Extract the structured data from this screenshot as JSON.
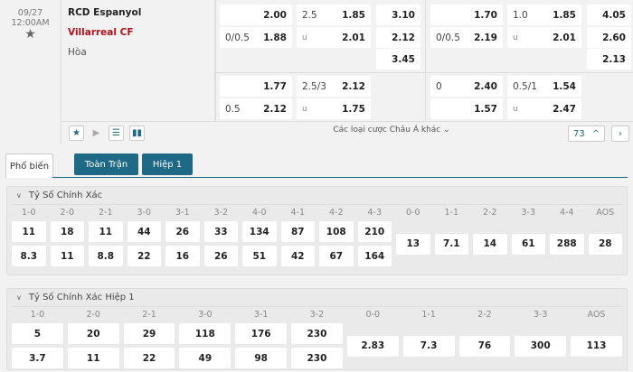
{
  "match": {
    "date": "09/27",
    "time": "12:00AM",
    "home": "RCD Espanyol",
    "away": "Villarreal CF",
    "draw": "Hòa"
  },
  "odds": {
    "ft": {
      "hdp": [
        {
          "line": "",
          "odd": "2.00"
        },
        {
          "line": "0/0.5",
          "odd": "1.88"
        }
      ],
      "ou": [
        {
          "line": "2.5",
          "odd": "1.85"
        },
        {
          "line": "u",
          "odd": "2.01"
        }
      ],
      "x12": [
        "3.10",
        "2.12",
        "3.45"
      ]
    },
    "ft_alt": {
      "hdp": [
        {
          "line": "",
          "odd": "1.77"
        },
        {
          "line": "0.5",
          "odd": "2.12"
        }
      ],
      "ou": [
        {
          "line": "2.5/3",
          "odd": "2.12"
        },
        {
          "line": "u",
          "odd": "1.75"
        }
      ]
    },
    "h1": {
      "hdp": [
        {
          "line": "",
          "odd": "1.70"
        },
        {
          "line": "0/0.5",
          "odd": "2.19"
        }
      ],
      "ou": [
        {
          "line": "1.0",
          "odd": "1.85"
        },
        {
          "line": "u",
          "odd": "2.01"
        }
      ],
      "x12": [
        "4.05",
        "2.60",
        "2.13"
      ]
    },
    "h1_alt": {
      "hdp": [
        {
          "line": "0",
          "odd": "2.40"
        },
        {
          "line": "",
          "odd": "1.57"
        }
      ],
      "ou": [
        {
          "line": "0.5/1",
          "odd": "1.54"
        },
        {
          "line": "u",
          "odd": "2.47"
        }
      ]
    }
  },
  "bottom": {
    "more_label": "Các loại cược Châu Á khác",
    "count": "73",
    "icons": [
      "star-icon",
      "play-icon",
      "list-icon",
      "stats-icon"
    ]
  },
  "tabs": [
    {
      "label": "Phổ biến",
      "active": true
    },
    {
      "label": "Toàn Trận"
    },
    {
      "label": "Hiệp 1"
    }
  ],
  "accent": "#1e6a86",
  "sections": [
    {
      "title": "Tỷ Số Chính Xác",
      "paired": [
        {
          "label": "1-0",
          "home": "11",
          "away": "8.3"
        },
        {
          "label": "2-0",
          "home": "18",
          "away": "11"
        },
        {
          "label": "2-1",
          "home": "11",
          "away": "8.8"
        },
        {
          "label": "3-0",
          "home": "44",
          "away": "22"
        },
        {
          "label": "3-1",
          "home": "26",
          "away": "16"
        },
        {
          "label": "3-2",
          "home": "33",
          "away": "26"
        },
        {
          "label": "4-0",
          "home": "134",
          "away": "51"
        },
        {
          "label": "4-1",
          "home": "87",
          "away": "42"
        },
        {
          "label": "4-2",
          "home": "108",
          "away": "67"
        },
        {
          "label": "4-3",
          "home": "210",
          "away": "164"
        }
      ],
      "single": [
        {
          "label": "0-0",
          "value": "13"
        },
        {
          "label": "1-1",
          "value": "7.1"
        },
        {
          "label": "2-2",
          "value": "14"
        },
        {
          "label": "3-3",
          "value": "61"
        },
        {
          "label": "4-4",
          "value": "288"
        },
        {
          "label": "AOS",
          "value": "28"
        }
      ]
    },
    {
      "title": "Tỷ Số Chính Xác Hiệp 1",
      "paired": [
        {
          "label": "1-0",
          "home": "5",
          "away": "3.7"
        },
        {
          "label": "2-0",
          "home": "20",
          "away": "11"
        },
        {
          "label": "2-1",
          "home": "29",
          "away": "22"
        },
        {
          "label": "3-0",
          "home": "118",
          "away": "49"
        },
        {
          "label": "3-1",
          "home": "176",
          "away": "98"
        },
        {
          "label": "3-2",
          "home": "230",
          "away": "230"
        }
      ],
      "single": [
        {
          "label": "0-0",
          "value": "2.83"
        },
        {
          "label": "1-1",
          "value": "7.3"
        },
        {
          "label": "2-2",
          "value": "76"
        },
        {
          "label": "3-3",
          "value": "300"
        },
        {
          "label": "AOS",
          "value": "113"
        }
      ]
    }
  ]
}
